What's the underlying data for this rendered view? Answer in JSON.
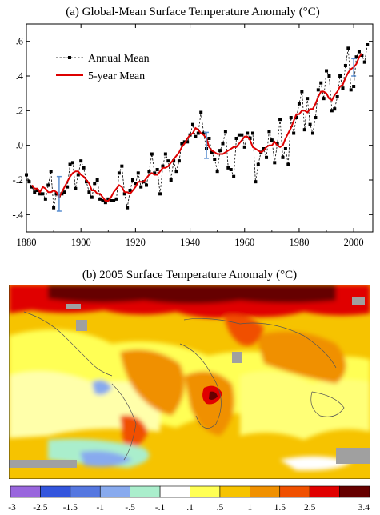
{
  "chart_data": [
    {
      "type": "line",
      "title": "(a)  Global-Mean Surface Temperature Anomaly (°C)",
      "xlabel": "",
      "ylabel": "",
      "xlim": [
        1880,
        2007
      ],
      "ylim": [
        -0.5,
        0.7
      ],
      "x_ticks": [
        1880,
        1900,
        1920,
        1940,
        1960,
        1980,
        2000
      ],
      "y_ticks": [
        {
          "value": 0.6,
          "label": ".6"
        },
        {
          "value": 0.4,
          "label": ".4"
        },
        {
          "value": 0.2,
          "label": ".2"
        },
        {
          "value": 0.0,
          "label": ".0"
        },
        {
          "value": -0.2,
          "label": "-.2"
        },
        {
          "value": -0.4,
          "label": "-.4"
        }
      ],
      "legend": {
        "placement": "top-left"
      },
      "series": [
        {
          "name": "Annual Mean",
          "style": "dashed-black-square-markers",
          "color": "#000000",
          "x": [
            1880,
            1881,
            1882,
            1883,
            1884,
            1885,
            1886,
            1887,
            1888,
            1889,
            1890,
            1891,
            1892,
            1893,
            1894,
            1895,
            1896,
            1897,
            1898,
            1899,
            1900,
            1901,
            1902,
            1903,
            1904,
            1905,
            1906,
            1907,
            1908,
            1909,
            1910,
            1911,
            1912,
            1913,
            1914,
            1915,
            1916,
            1917,
            1918,
            1919,
            1920,
            1921,
            1922,
            1923,
            1924,
            1925,
            1926,
            1927,
            1928,
            1929,
            1930,
            1931,
            1932,
            1933,
            1934,
            1935,
            1936,
            1937,
            1938,
            1939,
            1940,
            1941,
            1942,
            1943,
            1944,
            1945,
            1946,
            1947,
            1948,
            1949,
            1950,
            1951,
            1952,
            1953,
            1954,
            1955,
            1956,
            1957,
            1958,
            1959,
            1960,
            1961,
            1962,
            1963,
            1964,
            1965,
            1966,
            1967,
            1968,
            1969,
            1970,
            1971,
            1972,
            1973,
            1974,
            1975,
            1976,
            1977,
            1978,
            1979,
            1980,
            1981,
            1982,
            1983,
            1984,
            1985,
            1986,
            1987,
            1988,
            1989,
            1990,
            1991,
            1992,
            1993,
            1994,
            1995,
            1996,
            1997,
            1998,
            1999,
            2000,
            2001,
            2002,
            2003,
            2004,
            2005
          ],
          "values": [
            -0.17,
            -0.21,
            -0.24,
            -0.27,
            -0.26,
            -0.28,
            -0.28,
            -0.31,
            -0.23,
            -0.15,
            -0.36,
            -0.28,
            -0.29,
            -0.28,
            -0.27,
            -0.24,
            -0.11,
            -0.1,
            -0.25,
            -0.17,
            -0.09,
            -0.13,
            -0.21,
            -0.27,
            -0.3,
            -0.22,
            -0.2,
            -0.31,
            -0.32,
            -0.33,
            -0.31,
            -0.32,
            -0.32,
            -0.31,
            -0.16,
            -0.12,
            -0.28,
            -0.36,
            -0.26,
            -0.2,
            -0.22,
            -0.16,
            -0.24,
            -0.21,
            -0.23,
            -0.15,
            -0.05,
            -0.16,
            -0.14,
            -0.28,
            -0.12,
            -0.05,
            -0.09,
            -0.2,
            -0.09,
            -0.15,
            -0.09,
            0.01,
            0.02,
            0.02,
            0.06,
            0.12,
            0.05,
            0.07,
            0.19,
            0.07,
            -0.02,
            0.04,
            -0.04,
            -0.08,
            -0.15,
            -0.03,
            0.01,
            0.08,
            -0.13,
            -0.14,
            -0.18,
            0.04,
            0.06,
            0.06,
            -0.01,
            0.07,
            0.04,
            0.07,
            -0.21,
            -0.11,
            -0.04,
            -0.02,
            -0.07,
            0.08,
            0.03,
            -0.1,
            0.01,
            0.15,
            -0.07,
            -0.02,
            -0.11,
            0.16,
            0.07,
            0.16,
            0.24,
            0.31,
            0.09,
            0.27,
            0.12,
            0.07,
            0.16,
            0.32,
            0.36,
            0.27,
            0.43,
            0.4,
            0.2,
            0.21,
            0.28,
            0.4,
            0.33,
            0.46,
            0.56,
            0.32,
            0.34,
            0.51,
            0.54,
            0.52,
            0.48,
            0.58
          ]
        },
        {
          "name": "5-year Mean",
          "style": "solid-red",
          "color": "#dd0000",
          "x": [
            1882,
            1883,
            1884,
            1885,
            1886,
            1887,
            1888,
            1889,
            1890,
            1891,
            1892,
            1893,
            1894,
            1895,
            1896,
            1897,
            1898,
            1899,
            1900,
            1901,
            1902,
            1903,
            1904,
            1905,
            1906,
            1907,
            1908,
            1909,
            1910,
            1911,
            1912,
            1913,
            1914,
            1915,
            1916,
            1917,
            1918,
            1919,
            1920,
            1921,
            1922,
            1923,
            1924,
            1925,
            1926,
            1927,
            1928,
            1929,
            1930,
            1931,
            1932,
            1933,
            1934,
            1935,
            1936,
            1937,
            1938,
            1939,
            1940,
            1941,
            1942,
            1943,
            1944,
            1945,
            1946,
            1947,
            1948,
            1949,
            1950,
            1951,
            1952,
            1953,
            1954,
            1955,
            1956,
            1957,
            1958,
            1959,
            1960,
            1961,
            1962,
            1963,
            1964,
            1965,
            1966,
            1967,
            1968,
            1969,
            1970,
            1971,
            1972,
            1973,
            1974,
            1975,
            1976,
            1977,
            1978,
            1979,
            1980,
            1981,
            1982,
            1983,
            1984,
            1985,
            1986,
            1987,
            1988,
            1989,
            1990,
            1991,
            1992,
            1993,
            1994,
            1995,
            1996,
            1997,
            1998,
            1999,
            2000,
            2001,
            2002,
            2003
          ],
          "values": [
            -0.23,
            -0.25,
            -0.25,
            -0.27,
            -0.24,
            -0.25,
            -0.27,
            -0.27,
            -0.26,
            -0.27,
            -0.3,
            -0.27,
            -0.24,
            -0.21,
            -0.18,
            -0.16,
            -0.15,
            -0.15,
            -0.17,
            -0.18,
            -0.2,
            -0.22,
            -0.26,
            -0.26,
            -0.28,
            -0.28,
            -0.3,
            -0.32,
            -0.32,
            -0.3,
            -0.27,
            -0.25,
            -0.23,
            -0.24,
            -0.27,
            -0.27,
            -0.28,
            -0.26,
            -0.24,
            -0.21,
            -0.21,
            -0.21,
            -0.19,
            -0.17,
            -0.16,
            -0.17,
            -0.17,
            -0.15,
            -0.13,
            -0.13,
            -0.12,
            -0.1,
            -0.08,
            -0.06,
            -0.04,
            -0.01,
            0.01,
            0.04,
            0.06,
            0.07,
            0.1,
            0.09,
            0.07,
            0.06,
            0.04,
            -0.01,
            -0.03,
            -0.04,
            -0.05,
            -0.05,
            -0.05,
            -0.04,
            -0.03,
            -0.02,
            -0.01,
            -0.01,
            0.01,
            0.03,
            0.05,
            0.05,
            0.03,
            -0.01,
            -0.02,
            -0.03,
            -0.04,
            -0.03,
            -0.01,
            0.0,
            0.0,
            0.02,
            0.0,
            -0.01,
            0.0,
            0.04,
            0.07,
            0.1,
            0.14,
            0.18,
            0.18,
            0.2,
            0.2,
            0.19,
            0.21,
            0.21,
            0.24,
            0.28,
            0.31,
            0.31,
            0.3,
            0.27,
            0.26,
            0.29,
            0.31,
            0.34,
            0.35,
            0.39,
            0.42,
            0.44,
            0.45,
            0.47,
            0.51,
            0.53
          ]
        }
      ],
      "error_bars": [
        {
          "x": 1892,
          "center": -0.28,
          "half_width": 0.1
        },
        {
          "x": 1946,
          "center": 0.0,
          "half_width": 0.075
        },
        {
          "x": 2000,
          "center": 0.45,
          "half_width": 0.05
        }
      ],
      "error_bar_color": "#5a8fd0"
    },
    {
      "type": "heatmap",
      "title": "(b) 2005 Surface Temperature Anomaly (°C)",
      "colorbar": {
        "tick_labels": [
          "-3",
          "-2.5",
          "-1.5",
          "-1",
          "-.5",
          "-.1",
          ".1",
          ".5",
          "1",
          "1.5",
          "2.5",
          "3.4"
        ],
        "colors": [
          "#9966dd",
          "#3355dd",
          "#5577e0",
          "#88aaee",
          "#aaeecc",
          "#ffffff",
          "#ffff55",
          "#f6c300",
          "#f09000",
          "#f05000",
          "#e00000",
          "#660000"
        ]
      },
      "missing_data_color": "#a0a0a0"
    }
  ]
}
